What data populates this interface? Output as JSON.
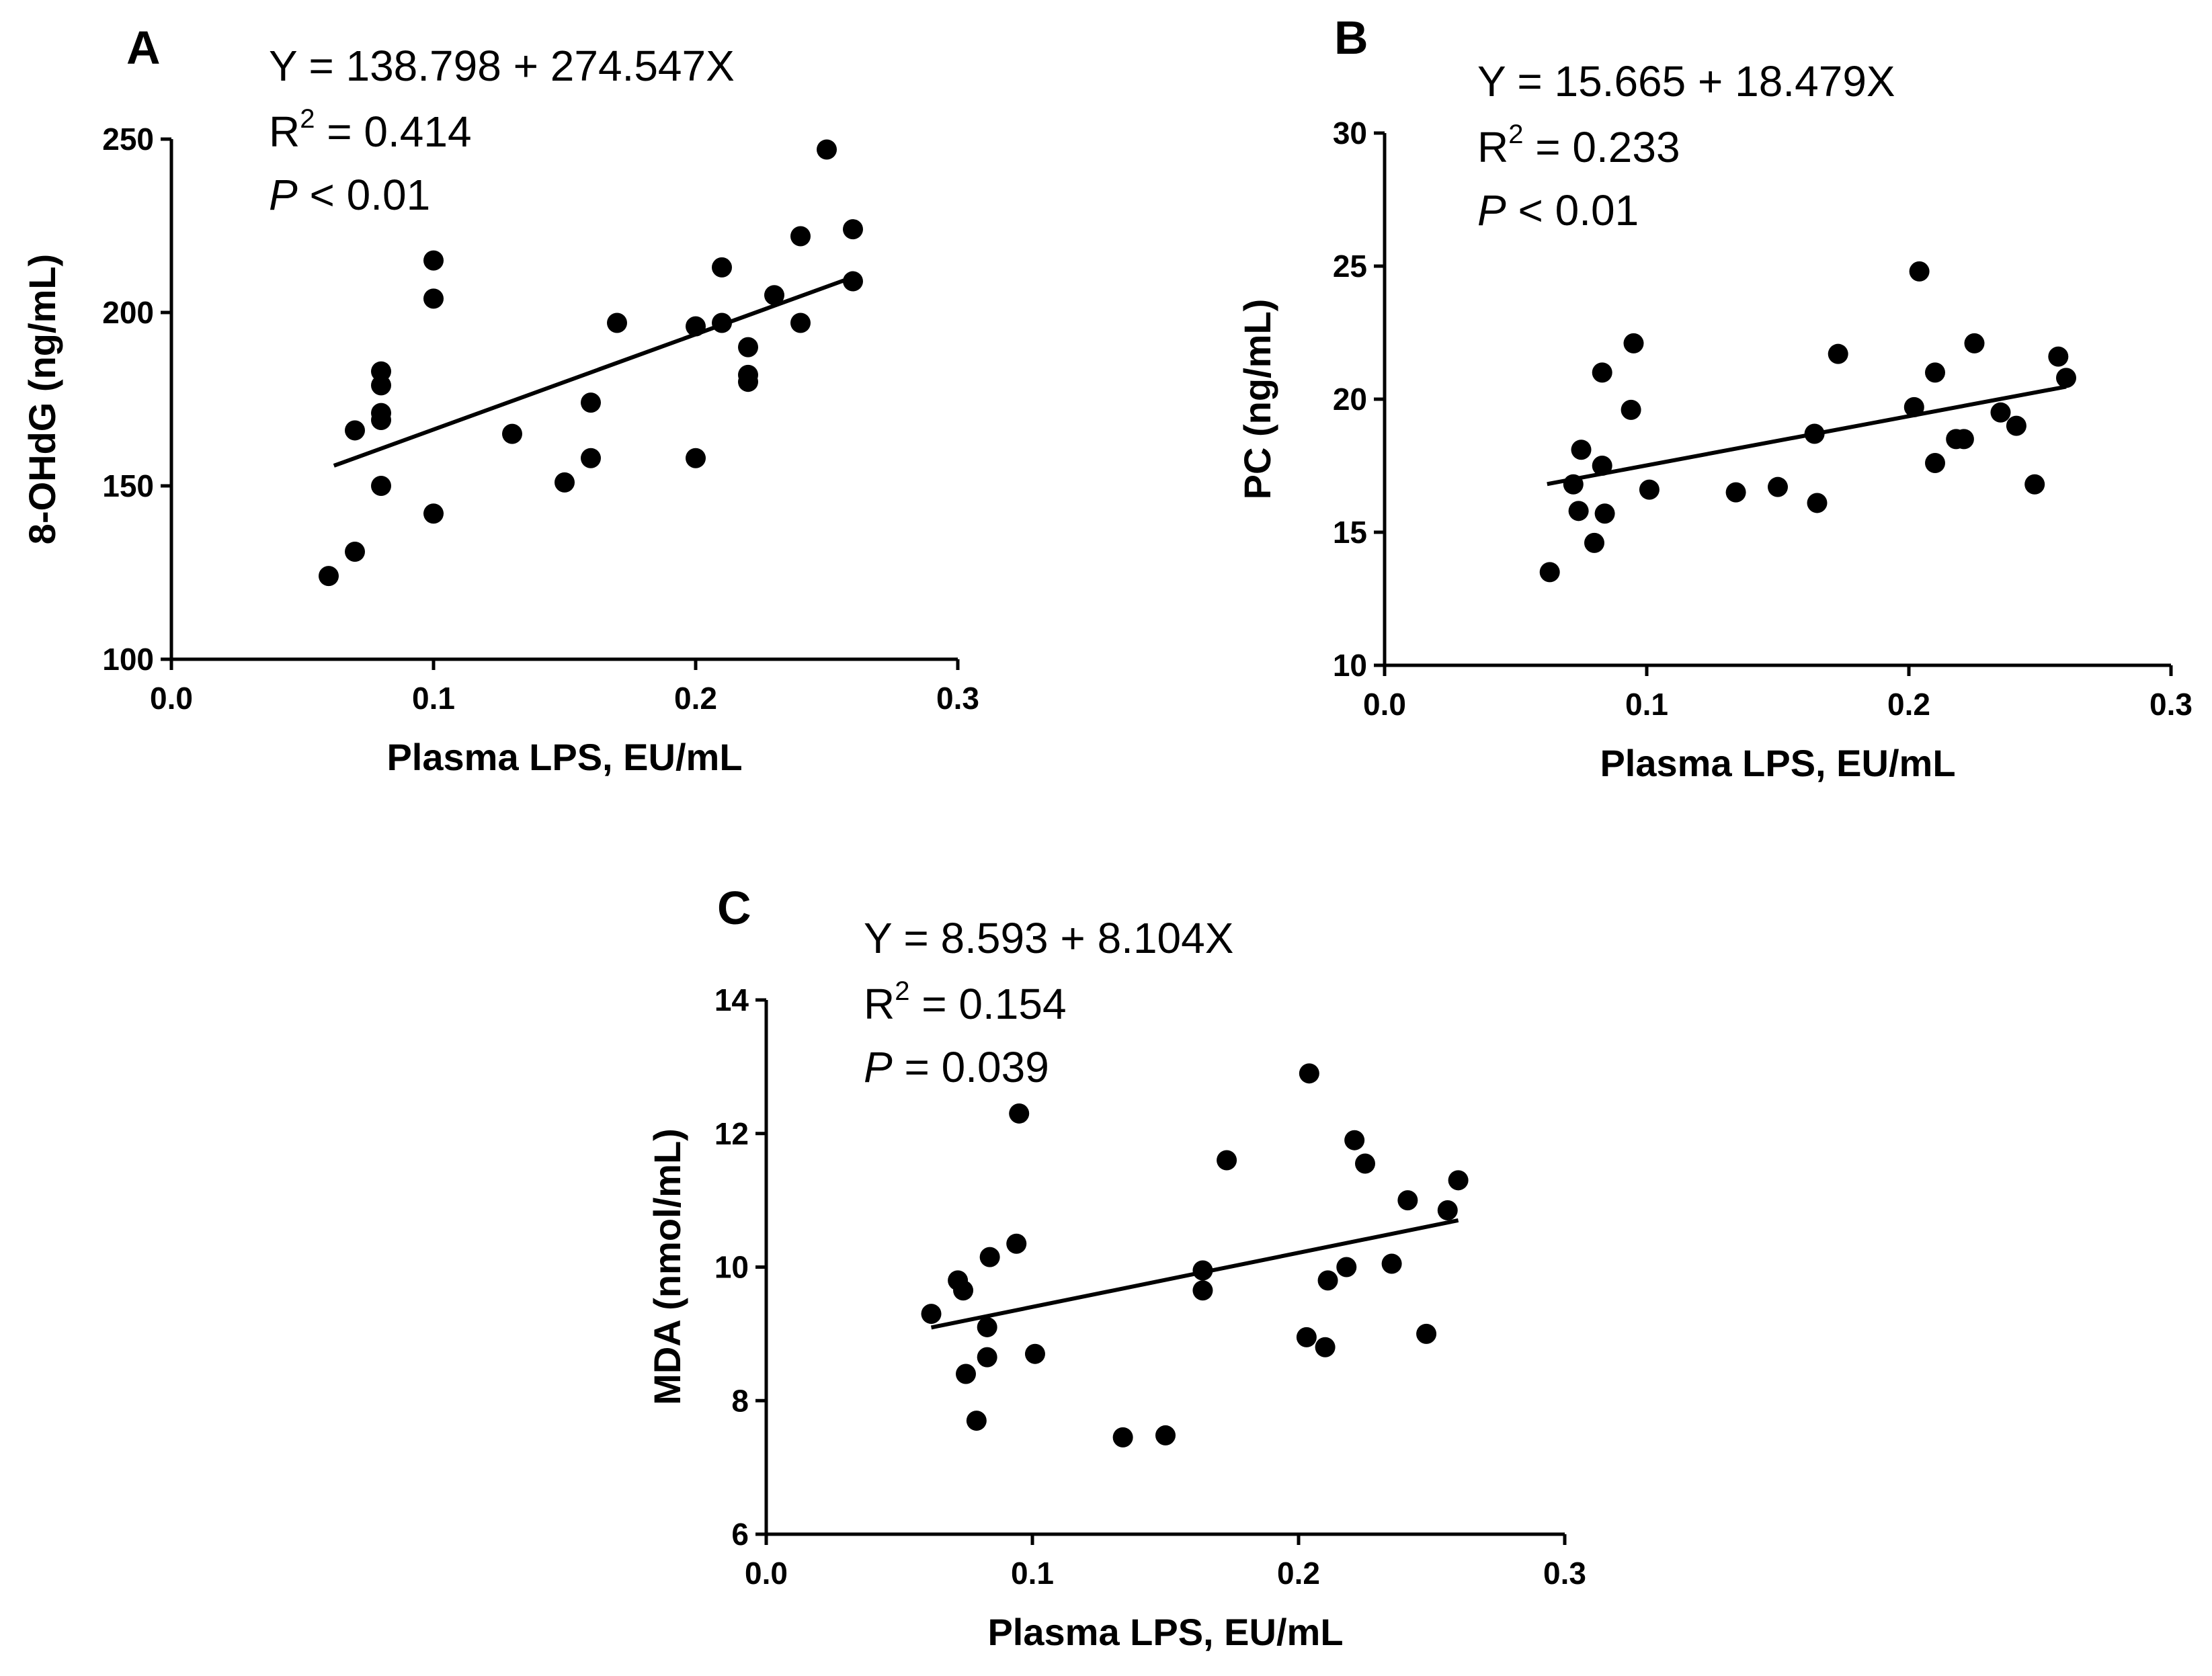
{
  "chart_data": [
    {
      "type": "scatter",
      "panel": "A",
      "xlabel": "Plasma LPS, EU/mL",
      "ylabel": "8-OHdG (ng/mL)",
      "xlim": [
        0.0,
        0.3
      ],
      "ylim": [
        100,
        250
      ],
      "xticks": [
        "0.0",
        "0.1",
        "0.2",
        "0.3"
      ],
      "yticks": [
        "100",
        "150",
        "200",
        "250"
      ],
      "annotation": {
        "equation": "Y = 138.798 + 274.547X",
        "r2_prefix": "R",
        "r2_sup": "2",
        "r2_value": " = 0.414",
        "p_symbol": "P",
        "p_value": " < 0.01"
      },
      "fit": {
        "intercept": 138.798,
        "slope": 274.547,
        "x_range": [
          0.062,
          0.26
        ]
      },
      "points": [
        {
          "x": 0.06,
          "y": 124
        },
        {
          "x": 0.07,
          "y": 131
        },
        {
          "x": 0.07,
          "y": 166
        },
        {
          "x": 0.08,
          "y": 150
        },
        {
          "x": 0.08,
          "y": 169
        },
        {
          "x": 0.08,
          "y": 171
        },
        {
          "x": 0.08,
          "y": 179
        },
        {
          "x": 0.08,
          "y": 183
        },
        {
          "x": 0.1,
          "y": 142
        },
        {
          "x": 0.1,
          "y": 204
        },
        {
          "x": 0.1,
          "y": 215
        },
        {
          "x": 0.13,
          "y": 165
        },
        {
          "x": 0.15,
          "y": 151
        },
        {
          "x": 0.16,
          "y": 158
        },
        {
          "x": 0.16,
          "y": 174
        },
        {
          "x": 0.17,
          "y": 197
        },
        {
          "x": 0.2,
          "y": 158
        },
        {
          "x": 0.2,
          "y": 196
        },
        {
          "x": 0.21,
          "y": 197
        },
        {
          "x": 0.21,
          "y": 213
        },
        {
          "x": 0.22,
          "y": 180
        },
        {
          "x": 0.22,
          "y": 182
        },
        {
          "x": 0.22,
          "y": 190
        },
        {
          "x": 0.23,
          "y": 205
        },
        {
          "x": 0.24,
          "y": 197
        },
        {
          "x": 0.24,
          "y": 222
        },
        {
          "x": 0.25,
          "y": 247
        },
        {
          "x": 0.26,
          "y": 209
        },
        {
          "x": 0.26,
          "y": 224
        }
      ]
    },
    {
      "type": "scatter",
      "panel": "B",
      "xlabel": "Plasma LPS, EU/mL",
      "ylabel": "PC (ng/mL)",
      "xlim": [
        0.0,
        0.3
      ],
      "ylim": [
        10,
        30
      ],
      "xticks": [
        "0.0",
        "0.1",
        "0.2",
        "0.3"
      ],
      "yticks": [
        "10",
        "15",
        "20",
        "25",
        "30"
      ],
      "annotation": {
        "equation": "Y = 15.665 + 18.479X",
        "r2_prefix": "R",
        "r2_sup": "2",
        "r2_value": " = 0.233",
        "p_symbol": "P",
        "p_value": " < 0.01"
      },
      "fit": {
        "intercept": 15.665,
        "slope": 18.479,
        "x_range": [
          0.062,
          0.26
        ]
      },
      "points": [
        {
          "x": 0.063,
          "y": 13.5
        },
        {
          "x": 0.072,
          "y": 16.8
        },
        {
          "x": 0.074,
          "y": 15.8
        },
        {
          "x": 0.075,
          "y": 18.1
        },
        {
          "x": 0.08,
          "y": 14.6
        },
        {
          "x": 0.083,
          "y": 17.5
        },
        {
          "x": 0.083,
          "y": 21.0
        },
        {
          "x": 0.084,
          "y": 15.7
        },
        {
          "x": 0.094,
          "y": 19.6
        },
        {
          "x": 0.095,
          "y": 22.1
        },
        {
          "x": 0.101,
          "y": 16.6
        },
        {
          "x": 0.134,
          "y": 16.5
        },
        {
          "x": 0.15,
          "y": 16.7
        },
        {
          "x": 0.164,
          "y": 18.7
        },
        {
          "x": 0.165,
          "y": 16.1
        },
        {
          "x": 0.173,
          "y": 21.7
        },
        {
          "x": 0.202,
          "y": 19.7
        },
        {
          "x": 0.204,
          "y": 24.8
        },
        {
          "x": 0.21,
          "y": 21.0
        },
        {
          "x": 0.21,
          "y": 17.6
        },
        {
          "x": 0.218,
          "y": 18.5
        },
        {
          "x": 0.221,
          "y": 18.5
        },
        {
          "x": 0.225,
          "y": 22.1
        },
        {
          "x": 0.235,
          "y": 19.5
        },
        {
          "x": 0.241,
          "y": 19.0
        },
        {
          "x": 0.248,
          "y": 16.8
        },
        {
          "x": 0.257,
          "y": 21.6
        },
        {
          "x": 0.26,
          "y": 20.8
        }
      ]
    },
    {
      "type": "scatter",
      "panel": "C",
      "xlabel": "Plasma LPS, EU/mL",
      "ylabel": "MDA (nmol/mL)",
      "xlim": [
        0.0,
        0.3
      ],
      "ylim": [
        6,
        14
      ],
      "xticks": [
        "0.0",
        "0.1",
        "0.2",
        "0.3"
      ],
      "yticks": [
        "6",
        "8",
        "10",
        "12",
        "14"
      ],
      "annotation": {
        "equation": "Y = 8.593 + 8.104X",
        "r2_prefix": "R",
        "r2_sup": "2",
        "r2_value": " = 0.154",
        "p_symbol": "P",
        "p_value": " = 0.039"
      },
      "fit": {
        "intercept": 8.593,
        "slope": 8.104,
        "x_range": [
          0.062,
          0.26
        ]
      },
      "points": [
        {
          "x": 0.062,
          "y": 9.3
        },
        {
          "x": 0.072,
          "y": 9.8
        },
        {
          "x": 0.074,
          "y": 9.65
        },
        {
          "x": 0.075,
          "y": 8.4
        },
        {
          "x": 0.079,
          "y": 7.7
        },
        {
          "x": 0.083,
          "y": 9.1
        },
        {
          "x": 0.083,
          "y": 8.65
        },
        {
          "x": 0.084,
          "y": 10.15
        },
        {
          "x": 0.094,
          "y": 10.35
        },
        {
          "x": 0.095,
          "y": 12.3
        },
        {
          "x": 0.101,
          "y": 8.7
        },
        {
          "x": 0.134,
          "y": 7.45
        },
        {
          "x": 0.15,
          "y": 7.48
        },
        {
          "x": 0.164,
          "y": 9.95
        },
        {
          "x": 0.164,
          "y": 9.65
        },
        {
          "x": 0.173,
          "y": 11.6
        },
        {
          "x": 0.203,
          "y": 8.95
        },
        {
          "x": 0.204,
          "y": 12.9
        },
        {
          "x": 0.21,
          "y": 8.8
        },
        {
          "x": 0.211,
          "y": 9.8
        },
        {
          "x": 0.218,
          "y": 10.0
        },
        {
          "x": 0.221,
          "y": 11.9
        },
        {
          "x": 0.225,
          "y": 11.55
        },
        {
          "x": 0.235,
          "y": 10.05
        },
        {
          "x": 0.241,
          "y": 11.0
        },
        {
          "x": 0.248,
          "y": 9.0
        },
        {
          "x": 0.256,
          "y": 10.85
        },
        {
          "x": 0.26,
          "y": 11.3
        }
      ]
    }
  ]
}
